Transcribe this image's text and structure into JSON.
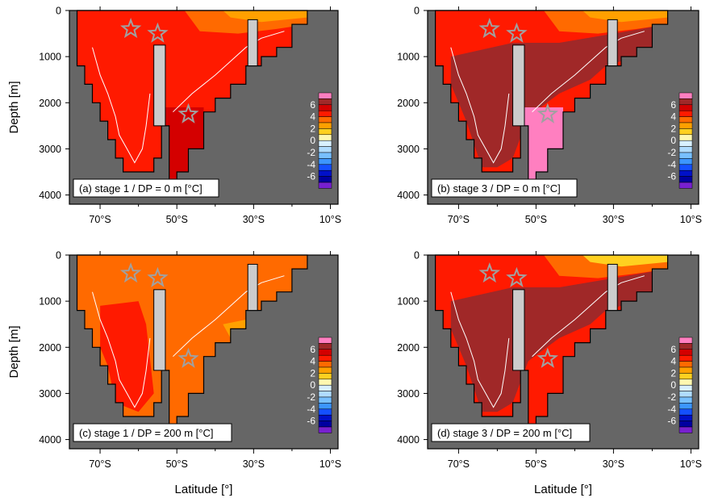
{
  "chart_data": {
    "type": "heatmap",
    "xlabel": "Latitude [°]",
    "ylabel": "Depth [m]",
    "x_ticks": [
      "70°S",
      "50°S",
      "30°S",
      "10°S"
    ],
    "x_tick_values": [
      -70,
      -50,
      -30,
      -10
    ],
    "y_ticks": [
      "0",
      "1000",
      "2000",
      "3000",
      "4000"
    ],
    "y_tick_values": [
      0,
      1000,
      2000,
      3000,
      4000
    ],
    "xlim": [
      -78,
      -8
    ],
    "ylim": [
      4200,
      0
    ],
    "colorbar": {
      "labels": [
        "6",
        "4",
        "2",
        "0",
        "-2",
        "-4",
        "-6"
      ],
      "label_values": [
        6,
        4,
        2,
        0,
        -2,
        -4,
        -6
      ],
      "colors": [
        "#ff7fc0",
        "#a02828",
        "#d40000",
        "#ff1a00",
        "#ff6a00",
        "#ffa000",
        "#ffd020",
        "#fff8b0",
        "#d8f0ff",
        "#b0dcff",
        "#78c0ff",
        "#3c96ff",
        "#1450ff",
        "#0010c8",
        "#0000a0",
        "#7820d0"
      ]
    },
    "background_color": "#666666",
    "barrier_color": "#cccccc",
    "panels": [
      {
        "label": "(a) stage 1 / DP = 0 m [°C]",
        "fields": [
          {
            "color": "#ff1a00",
            "region": "full"
          },
          {
            "color": "#d40000",
            "region": "deep-east"
          },
          {
            "color": "#ff6a00",
            "region": "upper-ne"
          },
          {
            "color": "#ffa000",
            "region": "top-ne"
          }
        ],
        "markers": [
          {
            "lat": -62,
            "depth": 400
          },
          {
            "lat": -55,
            "depth": 500
          },
          {
            "lat": -47,
            "depth": 2250
          }
        ]
      },
      {
        "label": "(b) stage 3 / DP = 0 m [°C]",
        "fields": [
          {
            "color": "#ff1a00",
            "region": "full"
          },
          {
            "color": "#a02828",
            "region": "mid-band"
          },
          {
            "color": "#ff7fc0",
            "region": "deep-east"
          },
          {
            "color": "#ff6a00",
            "region": "upper-ne"
          },
          {
            "color": "#ffa000",
            "region": "top-ne"
          }
        ],
        "markers": [
          {
            "lat": -62,
            "depth": 400
          },
          {
            "lat": -55,
            "depth": 500
          },
          {
            "lat": -47,
            "depth": 2250
          }
        ]
      },
      {
        "label": "(c) stage 1 / DP = 200 m [°C]",
        "fields": [
          {
            "color": "#ff6a00",
            "region": "full"
          },
          {
            "color": "#ff1a00",
            "region": "west-core"
          },
          {
            "color": "#ffa000",
            "region": "patch-35s"
          }
        ],
        "markers": [
          {
            "lat": -62,
            "depth": 400
          },
          {
            "lat": -55,
            "depth": 500
          },
          {
            "lat": -47,
            "depth": 2250
          }
        ]
      },
      {
        "label": "(d) stage 3 / DP = 200 m [°C]",
        "fields": [
          {
            "color": "#ff1a00",
            "region": "full"
          },
          {
            "color": "#a02828",
            "region": "mid-band"
          },
          {
            "color": "#ff6a00",
            "region": "upper-ne"
          },
          {
            "color": "#ffd020",
            "region": "top-ne"
          }
        ],
        "markers": [
          {
            "lat": -62,
            "depth": 400
          },
          {
            "lat": -55,
            "depth": 500
          },
          {
            "lat": -47,
            "depth": 2250
          }
        ]
      }
    ]
  }
}
